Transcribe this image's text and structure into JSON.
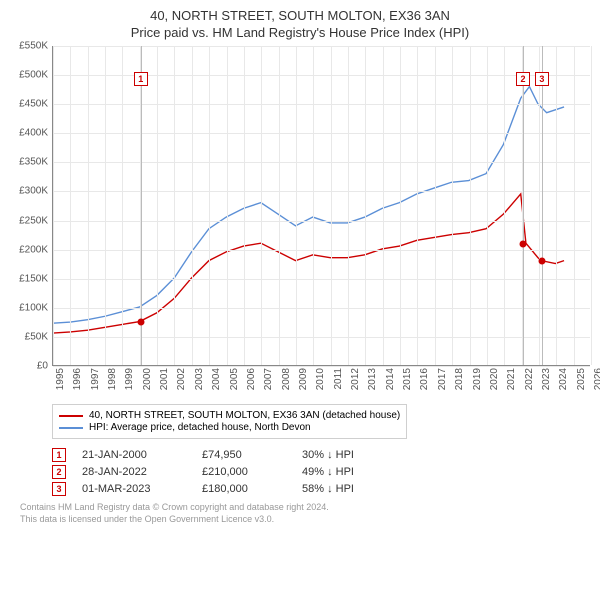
{
  "title1": "40, NORTH STREET, SOUTH MOLTON, EX36 3AN",
  "title2": "Price paid vs. HM Land Registry's House Price Index (HPI)",
  "chart": {
    "type": "line",
    "background_color": "#ffffff",
    "grid_color": "#e8e8e8",
    "axis_color": "#888888",
    "label_fontsize": 10,
    "title_fontsize": 13,
    "y": {
      "min": 0,
      "max": 550,
      "tick_step": 50,
      "tick_prefix": "£",
      "tick_suffix": "K",
      "ticks": [
        0,
        50,
        100,
        150,
        200,
        250,
        300,
        350,
        400,
        450,
        500,
        550
      ]
    },
    "x": {
      "min": 1995,
      "max": 2026,
      "ticks": [
        1995,
        1996,
        1997,
        1998,
        1999,
        2000,
        2001,
        2002,
        2003,
        2004,
        2005,
        2006,
        2007,
        2008,
        2009,
        2010,
        2011,
        2012,
        2013,
        2014,
        2015,
        2016,
        2017,
        2018,
        2019,
        2020,
        2021,
        2022,
        2023,
        2024,
        2025,
        2026
      ]
    },
    "series": [
      {
        "name": "price_paid",
        "label": "40, NORTH STREET, SOUTH MOLTON, EX36 3AN (detached house)",
        "color": "#cc0000",
        "line_width": 1.4,
        "points": [
          [
            1995,
            55
          ],
          [
            1996,
            57
          ],
          [
            1997,
            60
          ],
          [
            1998,
            65
          ],
          [
            1999,
            70
          ],
          [
            2000,
            75
          ],
          [
            2001,
            90
          ],
          [
            2002,
            115
          ],
          [
            2003,
            150
          ],
          [
            2004,
            180
          ],
          [
            2005,
            195
          ],
          [
            2006,
            205
          ],
          [
            2007,
            210
          ],
          [
            2008,
            195
          ],
          [
            2009,
            180
          ],
          [
            2010,
            190
          ],
          [
            2011,
            185
          ],
          [
            2012,
            185
          ],
          [
            2013,
            190
          ],
          [
            2014,
            200
          ],
          [
            2015,
            205
          ],
          [
            2016,
            215
          ],
          [
            2017,
            220
          ],
          [
            2018,
            225
          ],
          [
            2019,
            228
          ],
          [
            2020,
            235
          ],
          [
            2021,
            260
          ],
          [
            2022,
            295
          ],
          [
            2022.3,
            210
          ],
          [
            2023,
            185
          ],
          [
            2023.2,
            180
          ],
          [
            2024,
            175
          ],
          [
            2024.5,
            180
          ]
        ]
      },
      {
        "name": "hpi",
        "label": "HPI: Average price, detached house, North Devon",
        "color": "#5b8fd6",
        "line_width": 1.4,
        "points": [
          [
            1995,
            72
          ],
          [
            1996,
            74
          ],
          [
            1997,
            78
          ],
          [
            1998,
            84
          ],
          [
            1999,
            92
          ],
          [
            2000,
            100
          ],
          [
            2001,
            120
          ],
          [
            2002,
            150
          ],
          [
            2003,
            195
          ],
          [
            2004,
            235
          ],
          [
            2005,
            255
          ],
          [
            2006,
            270
          ],
          [
            2007,
            280
          ],
          [
            2008,
            260
          ],
          [
            2009,
            240
          ],
          [
            2010,
            255
          ],
          [
            2011,
            245
          ],
          [
            2012,
            245
          ],
          [
            2013,
            255
          ],
          [
            2014,
            270
          ],
          [
            2015,
            280
          ],
          [
            2016,
            295
          ],
          [
            2017,
            305
          ],
          [
            2018,
            315
          ],
          [
            2019,
            318
          ],
          [
            2020,
            330
          ],
          [
            2021,
            380
          ],
          [
            2022,
            460
          ],
          [
            2022.5,
            480
          ],
          [
            2023,
            450
          ],
          [
            2023.5,
            435
          ],
          [
            2024,
            440
          ],
          [
            2024.5,
            445
          ]
        ]
      }
    ],
    "sale_markers": [
      {
        "num": "1",
        "year": 2000.06,
        "box_y": 505,
        "dot_price": 75,
        "dot_color": "#cc0000"
      },
      {
        "num": "2",
        "year": 2022.08,
        "box_y": 505,
        "dot_price": 210,
        "dot_color": "#cc0000"
      },
      {
        "num": "3",
        "year": 2023.17,
        "box_y": 505,
        "dot_price": 180,
        "dot_color": "#cc0000"
      }
    ]
  },
  "legend": {
    "items": [
      {
        "color": "#cc0000",
        "label": "40, NORTH STREET, SOUTH MOLTON, EX36 3AN (detached house)"
      },
      {
        "color": "#5b8fd6",
        "label": "HPI: Average price, detached house, North Devon"
      }
    ]
  },
  "sales": [
    {
      "num": "1",
      "date": "21-JAN-2000",
      "price": "£74,950",
      "delta": "30% ↓ HPI"
    },
    {
      "num": "2",
      "date": "28-JAN-2022",
      "price": "£210,000",
      "delta": "49% ↓ HPI"
    },
    {
      "num": "3",
      "date": "01-MAR-2023",
      "price": "£180,000",
      "delta": "58% ↓ HPI"
    }
  ],
  "footer1": "Contains HM Land Registry data © Crown copyright and database right 2024.",
  "footer2": "This data is licensed under the Open Government Licence v3.0."
}
